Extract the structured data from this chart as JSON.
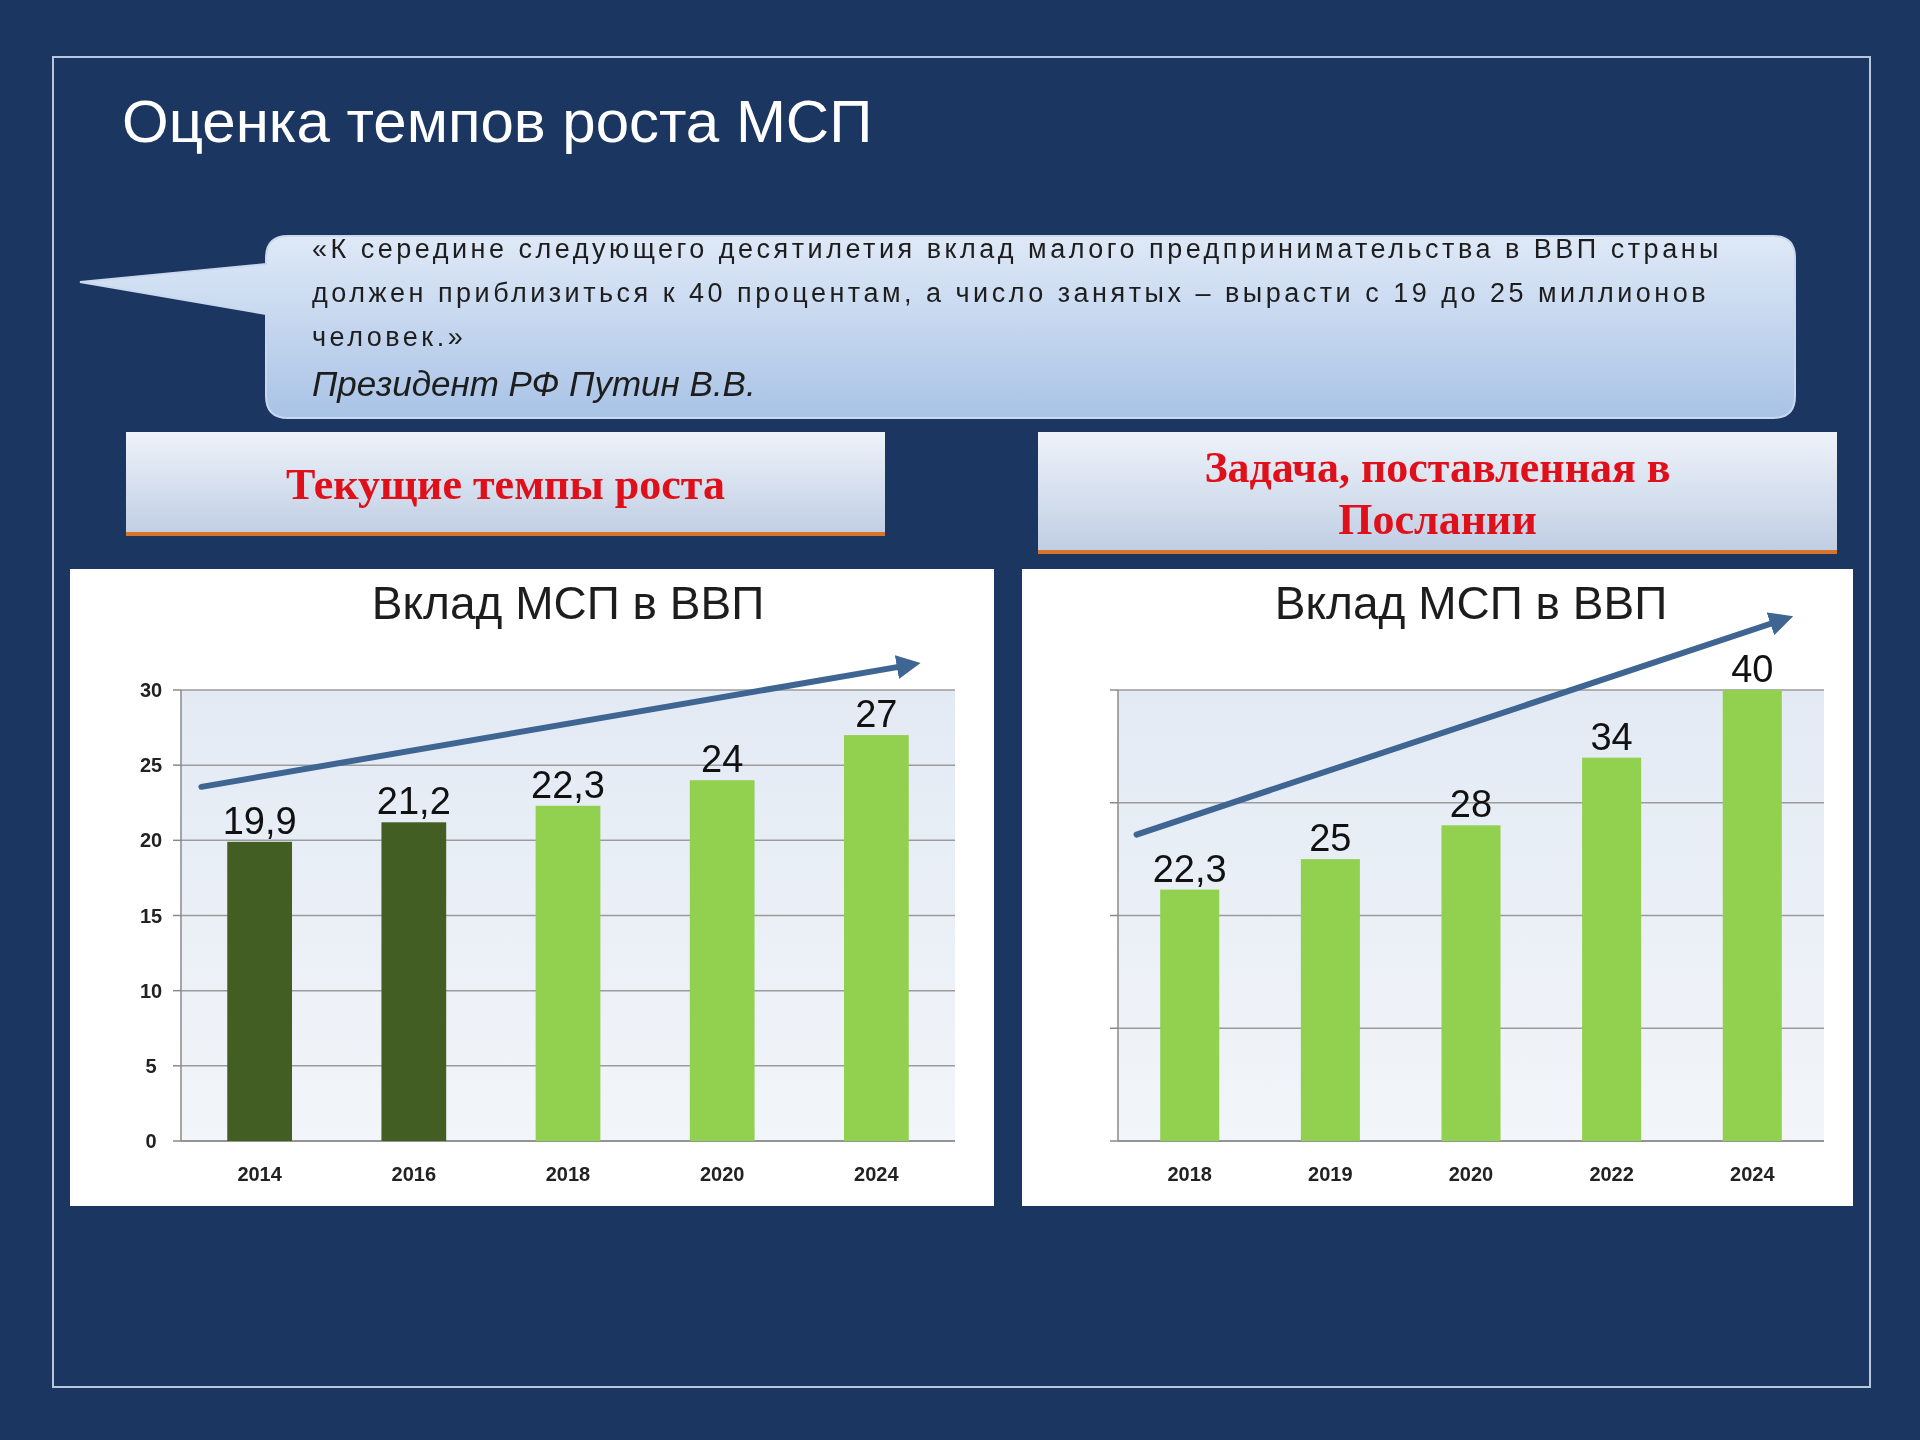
{
  "chart_data": [
    {
      "type": "other",
      "title": "Оценка темпов роста МСП",
      "annotations": [
        "«К середине следующего десятилетия вклад малого предпринимательства в ВВП страны должен приблизиться к 40 процентам, а число занятых – вырасти с 19 до 25 миллионов человек.»",
        "Президент РФ Путин В.В."
      ]
    },
    {
      "type": "bar",
      "title": "Текущие темпы роста",
      "subtitle": "Вклад МСП в ВВП",
      "categories": [
        "2014",
        "2016",
        "2018",
        "2020",
        "2024"
      ],
      "values": [
        19.9,
        21.2,
        22.3,
        24,
        27
      ],
      "colors": [
        "#435e22",
        "#435e22",
        "#92d050",
        "#92d050",
        "#92d050"
      ],
      "value_labels": [
        "19,9",
        "21,2",
        "22,3",
        "24",
        "27"
      ],
      "ylim": [
        0,
        30
      ],
      "yticks": [
        0,
        5,
        10,
        15,
        20,
        25,
        30
      ],
      "grid": "y"
    },
    {
      "type": "bar",
      "title": "Задача, поставленная в Послании",
      "subtitle": "Вклад МСП в ВВП",
      "categories": [
        "2018",
        "2019",
        "2020",
        "2022",
        "2024"
      ],
      "values": [
        22.3,
        25,
        28,
        34,
        40
      ],
      "colors": [
        "#92d050",
        "#92d050",
        "#92d050",
        "#92d050",
        "#92d050"
      ],
      "value_labels": [
        "22,3",
        "25",
        "28",
        "34",
        "40"
      ],
      "ylim": [
        0,
        40
      ],
      "yticks": [
        {
          "value": 0,
          "label": null
        },
        {
          "value": 10,
          "label": null
        },
        {
          "value": 20,
          "label": null
        },
        {
          "value": 30,
          "label": null
        },
        {
          "value": 40,
          "label": null
        }
      ],
      "grid": "y",
      "tick_labels": "x"
    }
  ]
}
